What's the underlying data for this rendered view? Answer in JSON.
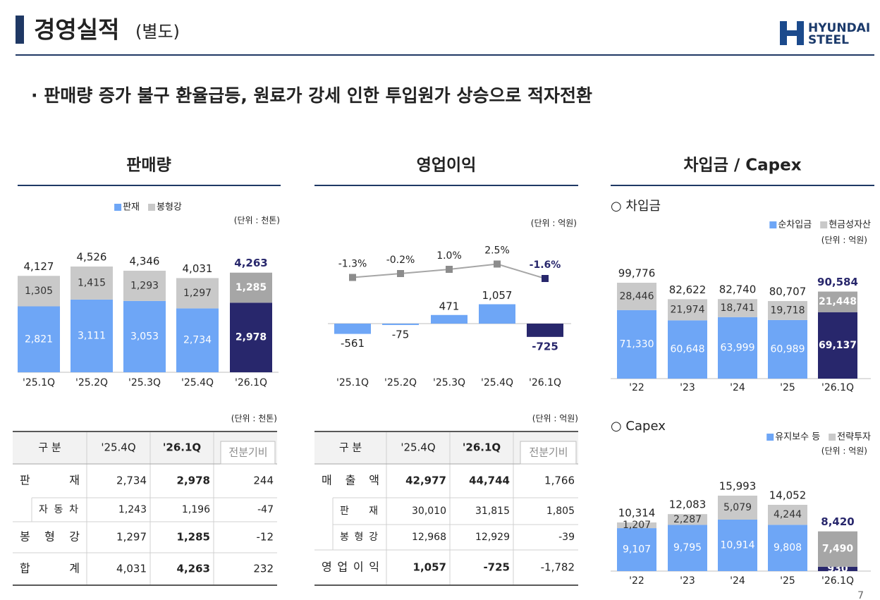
{
  "header": {
    "title": "경영실적",
    "subtitle": "(별도)",
    "logo": [
      "HYUNDAI",
      "STEEL"
    ],
    "headline": "· 판매량 증가 불구 환율급등, 원료가 강세 인한 투입원가 상승으로 적자전환",
    "page": "7"
  },
  "sections": [
    "판매량",
    "영업이익",
    "차입금 / Capex"
  ],
  "chart_data": [
    {
      "type": "stacked_bar",
      "unit": "(단위 : 천톤)",
      "categories": [
        "'25.1Q",
        "'25.2Q",
        "'25.3Q",
        "'25.4Q",
        "'26.1Q"
      ],
      "series": [
        {
          "name": "판재",
          "colors": [
            "#6ea6f6",
            "#6ea6f6",
            "#6ea6f6",
            "#6ea6f6",
            "#28276c"
          ],
          "values": [
            2821,
            3111,
            3053,
            2734,
            2978
          ],
          "value_labels": [
            "2,821",
            "3,111",
            "3,053",
            "2,734",
            "2,978"
          ]
        },
        {
          "name": "봉형강",
          "colors": [
            "#c9c9c9",
            "#c9c9c9",
            "#c9c9c9",
            "#c9c9c9",
            "#a6a6a6"
          ],
          "values": [
            1305,
            1415,
            1293,
            1297,
            1285
          ],
          "value_labels": [
            "1,305",
            "1,415",
            "1,293",
            "1,297",
            "1,285"
          ]
        }
      ],
      "totals": [
        4127,
        4526,
        4346,
        4031,
        4263
      ],
      "total_labels": [
        "4,127",
        "4,526",
        "4,346",
        "4,031",
        "4,263"
      ]
    },
    {
      "type": "bar_line",
      "unit": "(단위 : 억원)",
      "categories": [
        "'25.1Q",
        "'25.2Q",
        "'25.3Q",
        "'25.4Q",
        "'26.1Q"
      ],
      "series": [
        {
          "type": "bar",
          "colors": [
            "#6ea6f6",
            "#6ea6f6",
            "#6ea6f6",
            "#6ea6f6",
            "#28276c"
          ],
          "values": [
            -561,
            -75,
            471,
            1057,
            -725
          ],
          "value_labels": [
            "-561",
            "-75",
            "471",
            "1,057",
            "-725"
          ]
        },
        {
          "type": "line",
          "color": "#a6a6a6",
          "colors": [
            "#8c8c8c",
            "#8c8c8c",
            "#8c8c8c",
            "#8c8c8c",
            "#28276c"
          ],
          "values": [
            -1.3,
            -0.2,
            1.0,
            2.5,
            -1.6
          ],
          "value_labels": [
            "-1.3%",
            "-0.2%",
            "1.0%",
            "2.5%",
            "-1.6%"
          ]
        }
      ]
    },
    {
      "type": "stacked_bar",
      "title": "○ 차입금",
      "unit": "(단위 : 억원)",
      "categories": [
        "'22",
        "'23",
        "'24",
        "'25",
        "'26.1Q"
      ],
      "series": [
        {
          "name": "순차입금",
          "colors": [
            "#6ea6f6",
            "#6ea6f6",
            "#6ea6f6",
            "#6ea6f6",
            "#28276c"
          ],
          "values": [
            71330,
            60648,
            63999,
            60989,
            69137
          ],
          "value_labels": [
            "71,330",
            "60,648",
            "63,999",
            "60,989",
            "69,137"
          ]
        },
        {
          "name": "현금성자산",
          "colors": [
            "#c9c9c9",
            "#c9c9c9",
            "#c9c9c9",
            "#c9c9c9",
            "#a6a6a6"
          ],
          "values": [
            28446,
            21974,
            18741,
            19718,
            21448
          ],
          "value_labels": [
            "28,446",
            "21,974",
            "18,741",
            "19,718",
            "21,448"
          ]
        }
      ],
      "totals": [
        99776,
        82622,
        82740,
        80707,
        90584
      ],
      "total_labels": [
        "99,776",
        "82,622",
        "82,740",
        "80,707",
        "90,584"
      ]
    },
    {
      "type": "stacked_bar",
      "title": "○ Capex",
      "unit": "(단위 : 억원)",
      "categories": [
        "'22",
        "'23",
        "'24",
        "'25",
        "'26.1Q"
      ],
      "series": [
        {
          "name": "유지보수 등",
          "colors": [
            "#6ea6f6",
            "#6ea6f6",
            "#6ea6f6",
            "#6ea6f6",
            "#28276c"
          ],
          "values": [
            9107,
            9795,
            10914,
            9808,
            930
          ],
          "value_labels": [
            "9,107",
            "9,795",
            "10,914",
            "9,808",
            "930"
          ]
        },
        {
          "name": "전략투자",
          "colors": [
            "#c9c9c9",
            "#c9c9c9",
            "#c9c9c9",
            "#c9c9c9",
            "#a6a6a6"
          ],
          "values": [
            1207,
            2287,
            5079,
            4244,
            7490
          ],
          "value_labels": [
            "1,207",
            "2,287",
            "5,079",
            "4,244",
            "7,490"
          ]
        }
      ],
      "totals": [
        10314,
        12083,
        15993,
        14052,
        8420
      ],
      "total_labels": [
        "10,314",
        "12,083",
        "15,993",
        "14,052",
        "8,420"
      ]
    }
  ],
  "tables": [
    {
      "unit": "(단위 : 천톤)",
      "header": [
        "구 분",
        "'25.4Q",
        "'26.1Q",
        "전분기비"
      ],
      "rows": [
        [
          "판 재",
          "2,734",
          "2,978",
          "244"
        ],
        [
          "자 동 차",
          "1,243",
          "1,196",
          "-47"
        ],
        [
          "봉 형 강",
          "1,297",
          "1,285",
          "-12"
        ],
        [
          "합 계",
          "4,031",
          "4,263",
          "232"
        ]
      ]
    },
    {
      "unit": "(단위 : 억원)",
      "header": [
        "구 분",
        "'25.4Q",
        "'26.1Q",
        "전분기비"
      ],
      "rows": [
        [
          "매 출 액",
          "42,977",
          "44,744",
          "1,766"
        ],
        [
          "판 재",
          "30,010",
          "31,815",
          "1,805"
        ],
        [
          "봉 형 강",
          "12,968",
          "12,929",
          "-39"
        ],
        [
          "영 업 이 익",
          "1,057",
          "-725",
          "-1,782"
        ]
      ]
    }
  ]
}
